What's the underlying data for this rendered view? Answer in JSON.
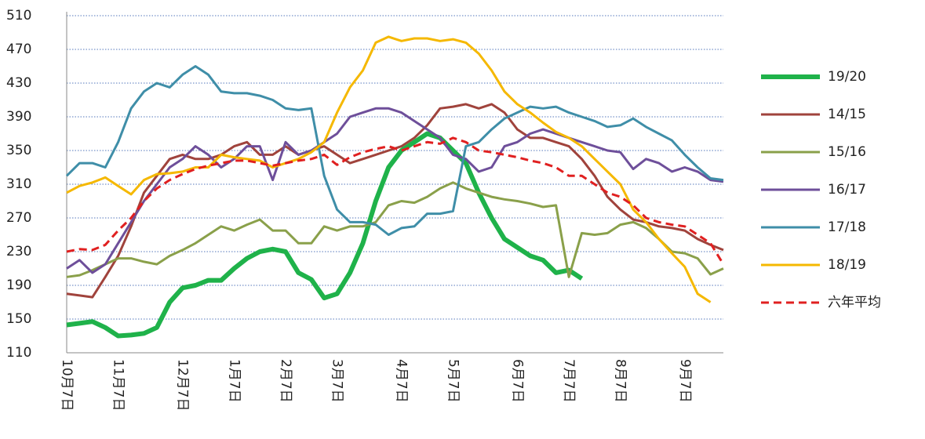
{
  "chart_data": {
    "type": "line",
    "categories": [
      "10月7日",
      null,
      null,
      null,
      "11月7日",
      null,
      null,
      null,
      null,
      "12月7日",
      null,
      null,
      null,
      "1月7日",
      null,
      null,
      null,
      "2月7日",
      null,
      null,
      null,
      "3月7日",
      null,
      null,
      null,
      null,
      "4月7日",
      null,
      null,
      null,
      "5月7日",
      null,
      null,
      null,
      null,
      "6月7日",
      null,
      null,
      null,
      "7月7日",
      null,
      null,
      null,
      "8月7日",
      null,
      null,
      null,
      null,
      "9月7日",
      null,
      null,
      null
    ],
    "ylim": [
      110,
      510
    ],
    "yticks": [
      110,
      150,
      190,
      230,
      270,
      310,
      350,
      390,
      430,
      470,
      510
    ],
    "grid": true,
    "legend": "right",
    "series": [
      {
        "name": "19/20",
        "color": "#1fb24a",
        "values": [
          143,
          145,
          147,
          140,
          130,
          131,
          133,
          140,
          170,
          187,
          190,
          196,
          196,
          210,
          222,
          230,
          233,
          230,
          205,
          197,
          175,
          180,
          205,
          240,
          290,
          330,
          350,
          360,
          370,
          365,
          350,
          335,
          300,
          270,
          245,
          235,
          225,
          220,
          205,
          208,
          198,
          null,
          null,
          null,
          null,
          null,
          null,
          null,
          null,
          null,
          null,
          null
        ]
      },
      {
        "name": "14/15",
        "color": "#a0433c",
        "values": [
          180,
          178,
          176,
          200,
          225,
          260,
          300,
          320,
          340,
          345,
          340,
          340,
          345,
          355,
          360,
          345,
          345,
          355,
          345,
          350,
          355,
          345,
          335,
          340,
          345,
          350,
          355,
          365,
          380,
          400,
          402,
          405,
          400,
          405,
          395,
          375,
          365,
          365,
          360,
          355,
          340,
          320,
          295,
          280,
          268,
          265,
          260,
          258,
          255,
          245,
          238,
          232
        ]
      },
      {
        "name": "15/16",
        "color": "#8aa04a",
        "values": [
          200,
          202,
          208,
          215,
          222,
          222,
          218,
          215,
          225,
          232,
          240,
          250,
          260,
          255,
          262,
          268,
          255,
          255,
          240,
          240,
          260,
          255,
          260,
          260,
          265,
          285,
          290,
          288,
          295,
          305,
          312,
          305,
          300,
          295,
          292,
          290,
          287,
          283,
          285,
          200,
          252,
          250,
          252,
          262,
          265,
          258,
          245,
          230,
          228,
          222,
          203,
          210
        ]
      },
      {
        "name": "16/17",
        "color": "#6e4f9a",
        "values": [
          210,
          220,
          205,
          215,
          240,
          265,
          290,
          310,
          330,
          340,
          355,
          345,
          330,
          340,
          355,
          355,
          315,
          360,
          345,
          350,
          360,
          370,
          390,
          395,
          400,
          400,
          395,
          385,
          375,
          365,
          345,
          340,
          325,
          330,
          355,
          360,
          370,
          375,
          370,
          365,
          360,
          355,
          350,
          348,
          328,
          340,
          335,
          325,
          330,
          325,
          315,
          313
        ]
      },
      {
        "name": "17/18",
        "color": "#3f8ea8",
        "values": [
          320,
          335,
          335,
          330,
          360,
          400,
          420,
          430,
          425,
          440,
          450,
          440,
          420,
          418,
          418,
          415,
          410,
          400,
          398,
          400,
          320,
          280,
          265,
          265,
          262,
          250,
          258,
          260,
          275,
          275,
          278,
          355,
          360,
          375,
          388,
          395,
          402,
          400,
          402,
          395,
          390,
          385,
          378,
          380,
          388,
          378,
          370,
          362,
          345,
          330,
          317,
          315
        ]
      },
      {
        "name": "18/19",
        "color": "#f5b800",
        "values": [
          300,
          308,
          312,
          318,
          308,
          298,
          315,
          322,
          323,
          325,
          330,
          330,
          345,
          342,
          340,
          338,
          330,
          335,
          340,
          348,
          360,
          395,
          425,
          445,
          478,
          485,
          480,
          483,
          483,
          480,
          482,
          478,
          465,
          445,
          420,
          405,
          395,
          383,
          372,
          365,
          355,
          340,
          325,
          310,
          280,
          265,
          245,
          228,
          212,
          180,
          170,
          null
        ]
      },
      {
        "name": "六年平均",
        "color": "#e02020",
        "dashed": true,
        "values": [
          230,
          233,
          232,
          238,
          255,
          270,
          290,
          305,
          315,
          322,
          328,
          332,
          335,
          338,
          338,
          335,
          332,
          335,
          338,
          340,
          345,
          333,
          342,
          348,
          352,
          355,
          350,
          355,
          360,
          358,
          365,
          360,
          350,
          348,
          345,
          342,
          338,
          335,
          330,
          320,
          320,
          310,
          300,
          295,
          285,
          270,
          265,
          262,
          260,
          250,
          240,
          215
        ]
      }
    ]
  }
}
